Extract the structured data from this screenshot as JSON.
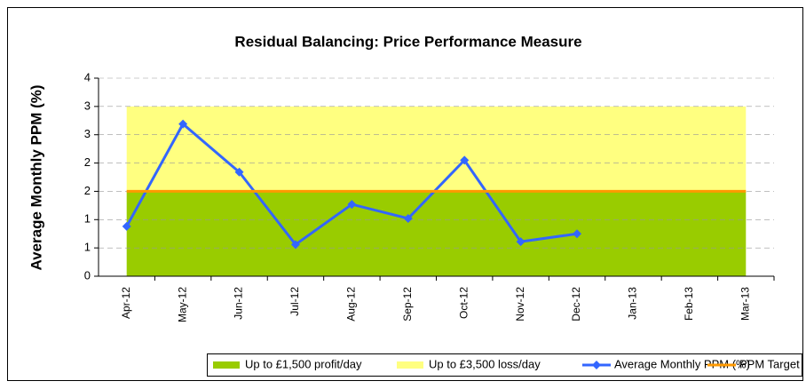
{
  "chart_data": {
    "type": "line",
    "title": "Residual Balancing: Price Performance Measure",
    "y_label": "Average Monthly PPM (%)",
    "categories": [
      "Apr-12",
      "May-12",
      "Jun-12",
      "Jul-12",
      "Aug-12",
      "Sep-12",
      "Oct-12",
      "Nov-12",
      "Dec-12",
      "Jan-13",
      "Feb-13",
      "Mar-13"
    ],
    "series": [
      {
        "name": "Up to £1,500 profit/day",
        "kind": "stacked-area",
        "color": "#99cc00",
        "values": [
          1.5,
          1.5,
          1.5,
          1.5,
          1.5,
          1.5,
          1.5,
          1.5,
          1.5,
          1.5,
          1.5,
          1.5
        ]
      },
      {
        "name": "Up to £3,500 loss/day",
        "kind": "stacked-area",
        "color": "#ffff80",
        "values": [
          1.5,
          1.5,
          1.5,
          1.5,
          1.5,
          1.5,
          1.5,
          1.5,
          1.5,
          1.5,
          1.5,
          1.5
        ]
      },
      {
        "name": "Average Monthly PPM (%)",
        "kind": "line",
        "marker": "diamond",
        "color": "#3366ff",
        "values": [
          0.88,
          2.69,
          1.84,
          0.56,
          1.27,
          1.02,
          2.05,
          0.61,
          0.75,
          null,
          null,
          null
        ]
      },
      {
        "name": "PPM Target",
        "kind": "line",
        "color": "#ff9900",
        "values": [
          1.5,
          1.5,
          1.5,
          1.5,
          1.5,
          1.5,
          1.5,
          1.5,
          1.5,
          1.5,
          1.5,
          1.5
        ]
      }
    ],
    "ylim": [
      0,
      3.5
    ],
    "yticks": [
      0,
      {
        "value": 0.5,
        "label": "1"
      },
      1,
      {
        "value": 1.5,
        "label": "2"
      },
      2,
      {
        "value": 2.5,
        "label": "3"
      },
      3,
      {
        "value": 3.5,
        "label": "4"
      }
    ],
    "grid": true,
    "legend": "bottom"
  }
}
